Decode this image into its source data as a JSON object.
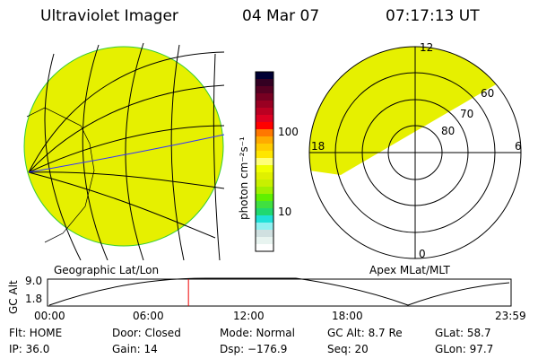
{
  "header": {
    "title": "Ultraviolet Imager",
    "date": "04 Mar 07",
    "time": "07:17:13 UT"
  },
  "colorbar": {
    "label": "photon cm⁻²s⁻¹",
    "ticks": [
      "100",
      "10"
    ]
  },
  "left_panel": {
    "caption": "Geographic Lat/Lon",
    "fill_color": "#e6f000"
  },
  "right_panel": {
    "caption": "Apex MLat/MLT",
    "mlt_labels": {
      "top": "12",
      "left": "18",
      "right": "6",
      "bottom": "0"
    },
    "lat_labels": [
      "80",
      "70",
      "60"
    ],
    "fill_color": "#e6f000"
  },
  "altitude_plot": {
    "ylabel": "GC Alt",
    "yticks": [
      "9.0",
      "1.8"
    ],
    "xticks": [
      "00:00",
      "06:00",
      "12:00",
      "18:00",
      "23:59"
    ],
    "current_time_fraction": 0.304
  },
  "status": {
    "row1": [
      "Flt: HOME",
      "Door: Closed",
      "Mode: Normal",
      "GC Alt: 8.7 Re",
      "GLat:  58.7"
    ],
    "row2": [
      "IP: 36.0",
      "Gain: 14",
      "Dsp: −176.9",
      "Seq: 20",
      "GLon:  97.7"
    ]
  }
}
